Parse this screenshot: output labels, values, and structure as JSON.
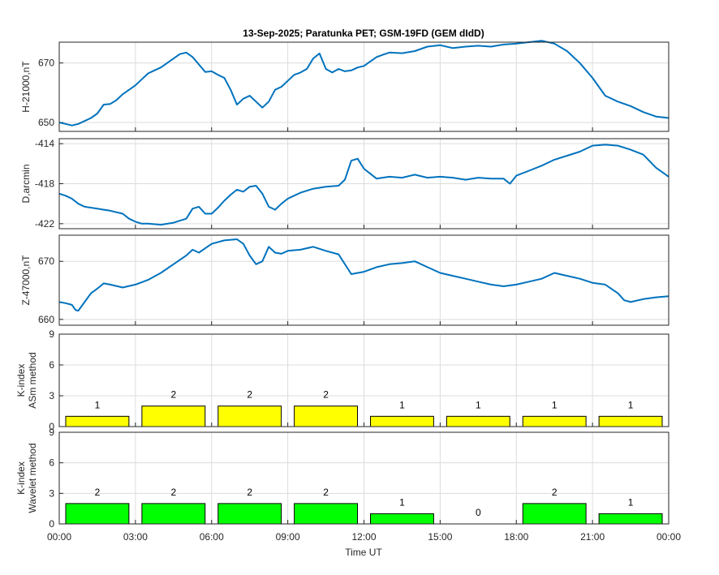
{
  "title": "13-Sep-2025; Paratunka PET; GSM-19FD (GEM dIdD)",
  "xlabel": "Time UT",
  "x_ticks": [
    "00:00",
    "03:00",
    "06:00",
    "09:00",
    "12:00",
    "15:00",
    "18:00",
    "21:00",
    "00:00"
  ],
  "colors": {
    "line": "#0072bd",
    "asm_bar": "#ffff00",
    "wavelet_bar": "#00ff00",
    "bar_edge": "#000000",
    "grid": "#dcdcdc"
  },
  "chart_data": [
    {
      "type": "line",
      "panel": "H",
      "ylabel": "H-21000,nT",
      "ylim": [
        647,
        677
      ],
      "yticks": [
        650,
        670
      ],
      "x_unit": "hours UT",
      "xlim": [
        0,
        24
      ],
      "series": [
        {
          "x": [
            0,
            0.25,
            0.5,
            0.75,
            1,
            1.25,
            1.5,
            1.75,
            2,
            2.25,
            2.5,
            2.75,
            3,
            3.25,
            3.5,
            3.75,
            4,
            4.25,
            4.5,
            4.75,
            5,
            5.25,
            5.5,
            5.75,
            6,
            6.25,
            6.5,
            6.75,
            7,
            7.25,
            7.5,
            7.75,
            8,
            8.25,
            8.5,
            8.75,
            9,
            9.25,
            9.5,
            9.75,
            10,
            10.25,
            10.5,
            10.75,
            11,
            11.25,
            11.5,
            11.75,
            12,
            12.25,
            12.5,
            12.75,
            13,
            13.5,
            14,
            14.5,
            15,
            15.5,
            16,
            16.5,
            17,
            17.5,
            18,
            18.5,
            19,
            19.5,
            20,
            20.5,
            21,
            21.5,
            22,
            22.5,
            23,
            23.5,
            24
          ],
          "y": [
            650,
            649.5,
            649,
            649.5,
            650.5,
            651.5,
            653,
            656,
            656.2,
            657.5,
            659.5,
            661,
            662.5,
            664.5,
            666.5,
            667.5,
            668.5,
            670,
            671.5,
            673,
            673.5,
            672,
            669.5,
            667,
            667.2,
            666,
            665,
            661,
            656,
            658,
            659,
            657,
            655,
            657,
            661,
            662,
            664,
            666,
            666.8,
            668,
            671.5,
            673.2,
            668,
            666.8,
            668,
            667.2,
            667.5,
            668.5,
            669,
            670.5,
            672,
            672.8,
            673.5,
            673.3,
            674,
            675.5,
            676,
            675,
            675.5,
            675.8,
            675.5,
            676.2,
            676.5,
            677,
            677.5,
            676.5,
            674,
            670,
            665,
            659,
            657,
            655.5,
            653.5,
            652,
            651.5
          ]
        }
      ]
    },
    {
      "type": "line",
      "panel": "D",
      "ylabel": "D,arcmin",
      "ylim": [
        -422.5,
        -413.5
      ],
      "yticks": [
        -414,
        -418,
        -422
      ],
      "x_unit": "hours UT",
      "xlim": [
        0,
        24
      ],
      "series": [
        {
          "x": [
            0,
            0.25,
            0.5,
            0.75,
            1,
            1.5,
            2,
            2.5,
            2.75,
            3,
            3.25,
            3.5,
            4,
            4.5,
            5,
            5.25,
            5.5,
            5.75,
            6,
            6.25,
            6.5,
            6.75,
            7,
            7.25,
            7.5,
            7.75,
            8,
            8.25,
            8.5,
            8.75,
            9,
            9.25,
            9.5,
            10,
            10.5,
            11,
            11.25,
            11.5,
            11.75,
            12,
            12.25,
            12.5,
            13,
            13.5,
            14,
            14.5,
            15,
            15.5,
            16,
            16.5,
            17,
            17.5,
            17.75,
            18,
            18.5,
            19,
            19.5,
            20,
            20.5,
            21,
            21.5,
            22,
            22.5,
            23,
            23.5,
            24
          ],
          "y": [
            -419,
            -419.2,
            -419.5,
            -420,
            -420.3,
            -420.5,
            -420.7,
            -421,
            -421.5,
            -421.8,
            -422,
            -422,
            -422.1,
            -421.9,
            -421.5,
            -420.5,
            -420.3,
            -421,
            -421,
            -420.4,
            -419.7,
            -419.1,
            -418.6,
            -418.8,
            -418.3,
            -418.2,
            -419,
            -420.3,
            -420.6,
            -420,
            -419.5,
            -419.2,
            -418.9,
            -418.5,
            -418.3,
            -418.2,
            -417.6,
            -415.7,
            -415.5,
            -416.5,
            -417,
            -417.5,
            -417.3,
            -417.4,
            -417.1,
            -417.4,
            -417.3,
            -417.4,
            -417.6,
            -417.4,
            -417.5,
            -417.5,
            -418,
            -417.2,
            -416.7,
            -416.2,
            -415.6,
            -415.2,
            -414.8,
            -414.2,
            -414.1,
            -414.2,
            -414.6,
            -415.1,
            -416.4,
            -417.3
          ]
        }
      ]
    },
    {
      "type": "line",
      "panel": "Z",
      "ylabel": "Z-47000,nT",
      "ylim": [
        659,
        674.5
      ],
      "yticks": [
        660,
        670
      ],
      "x_unit": "hours UT",
      "xlim": [
        0,
        24
      ],
      "series": [
        {
          "x": [
            0,
            0.25,
            0.5,
            0.65,
            0.75,
            1,
            1.25,
            1.5,
            1.75,
            2,
            2.5,
            3,
            3.5,
            4,
            4.5,
            5,
            5.25,
            5.5,
            6,
            6.5,
            7,
            7.25,
            7.5,
            7.75,
            8,
            8.25,
            8.5,
            8.75,
            9,
            9.5,
            10,
            10.5,
            11,
            11.5,
            12,
            12.5,
            13,
            13.5,
            14,
            14.5,
            15,
            15.5,
            16,
            16.5,
            17,
            17.5,
            18,
            18.5,
            19,
            19.5,
            20,
            20.5,
            21,
            21.5,
            22,
            22.25,
            22.5,
            23,
            23.5,
            24
          ],
          "y": [
            663,
            662.8,
            662.5,
            661.6,
            661.5,
            663,
            664.5,
            665.3,
            666.2,
            666,
            665.5,
            666,
            666.8,
            668,
            669.5,
            671,
            672,
            671.5,
            673,
            673.6,
            673.8,
            673,
            671,
            669.5,
            670,
            672.5,
            671.5,
            671.3,
            671.8,
            672,
            672.5,
            671.8,
            671.2,
            667.8,
            668.2,
            669,
            669.5,
            669.7,
            670,
            669,
            668,
            667.5,
            667,
            666.5,
            666,
            665.7,
            666,
            666.5,
            667,
            668,
            667.5,
            667,
            666.3,
            666,
            664.5,
            663.3,
            663,
            663.5,
            663.8,
            664
          ]
        }
      ]
    },
    {
      "type": "bar",
      "panel": "K-ASm",
      "ylabel": [
        "K-index",
        "ASm method"
      ],
      "ylim": [
        0,
        9
      ],
      "yticks": [
        0,
        3,
        6,
        9
      ],
      "categories": [
        "00:00-03:00",
        "03:00-06:00",
        "06:00-09:00",
        "09:00-12:00",
        "12:00-15:00",
        "15:00-18:00",
        "18:00-21:00",
        "21:00-00:00"
      ],
      "values": [
        1,
        2,
        2,
        2,
        1,
        1,
        1,
        1
      ],
      "data_labels": [
        "1",
        "2",
        "2",
        "2",
        "1",
        "1",
        "1",
        "1"
      ]
    },
    {
      "type": "bar",
      "panel": "K-Wavelet",
      "ylabel": [
        "K-index",
        "Wavelet method"
      ],
      "ylim": [
        0,
        9
      ],
      "yticks": [
        0,
        3,
        6,
        9
      ],
      "categories": [
        "00:00-03:00",
        "03:00-06:00",
        "06:00-09:00",
        "09:00-12:00",
        "12:00-15:00",
        "15:00-18:00",
        "18:00-21:00",
        "21:00-00:00"
      ],
      "values": [
        2,
        2,
        2,
        2,
        1,
        0,
        2,
        1
      ],
      "data_labels": [
        "2",
        "2",
        "2",
        "2",
        "1",
        "0",
        "2",
        "1"
      ]
    }
  ]
}
